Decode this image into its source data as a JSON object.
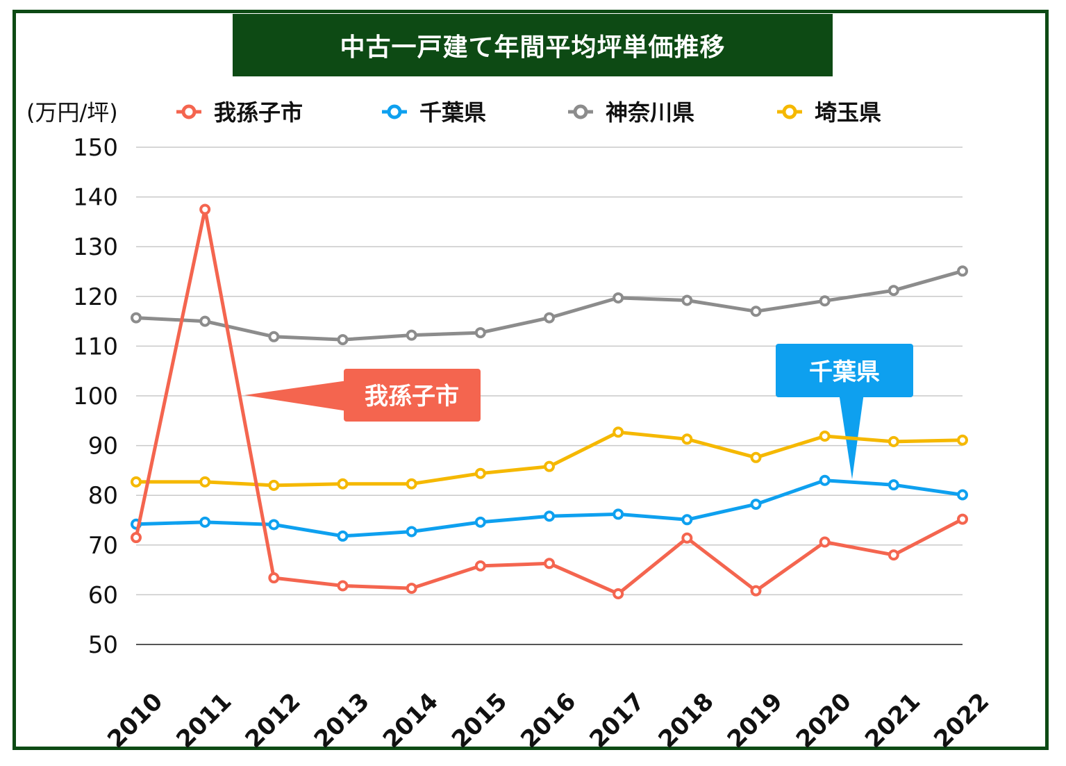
{
  "chart_data": {
    "type": "line",
    "title": "中古一戸建て年間平均坪単価推移",
    "ylabel": "(万円/坪)",
    "ylim": [
      50,
      150
    ],
    "yticks": [
      50,
      60,
      70,
      80,
      90,
      100,
      110,
      120,
      130,
      140,
      150
    ],
    "x": [
      "2010",
      "2011",
      "2012",
      "2013",
      "2014",
      "2015",
      "2016",
      "2017",
      "2018",
      "2019",
      "2020",
      "2021",
      "2022"
    ],
    "grid": true,
    "legend_placement": "top",
    "series": [
      {
        "name": "我孫子市",
        "color": "#f4654f",
        "values": [
          71.5,
          137.5,
          63.4,
          61.8,
          61.3,
          65.8,
          66.3,
          60.2,
          71.4,
          60.8,
          70.6,
          68.0,
          75.2
        ]
      },
      {
        "name": "千葉県",
        "color": "#0ea0ef",
        "values": [
          74.2,
          74.6,
          74.1,
          71.8,
          72.7,
          74.6,
          75.8,
          76.2,
          75.1,
          78.2,
          83.0,
          82.1,
          80.1
        ]
      },
      {
        "name": "神奈川県",
        "color": "#8c8c8c",
        "values": [
          115.7,
          115.0,
          111.9,
          111.3,
          112.2,
          112.7,
          115.7,
          119.7,
          119.2,
          117.0,
          119.1,
          121.2,
          125.1
        ]
      },
      {
        "name": "埼玉県",
        "color": "#f5b800",
        "values": [
          82.7,
          82.7,
          82.0,
          82.3,
          82.3,
          84.4,
          85.8,
          92.7,
          91.3,
          87.6,
          91.9,
          90.8,
          91.1
        ]
      }
    ],
    "annotations": [
      {
        "text": "我孫子市",
        "series": "我孫子市",
        "color": "#f4654f"
      },
      {
        "text": "千葉県",
        "series": "千葉県",
        "color": "#0ea0ef"
      }
    ]
  }
}
